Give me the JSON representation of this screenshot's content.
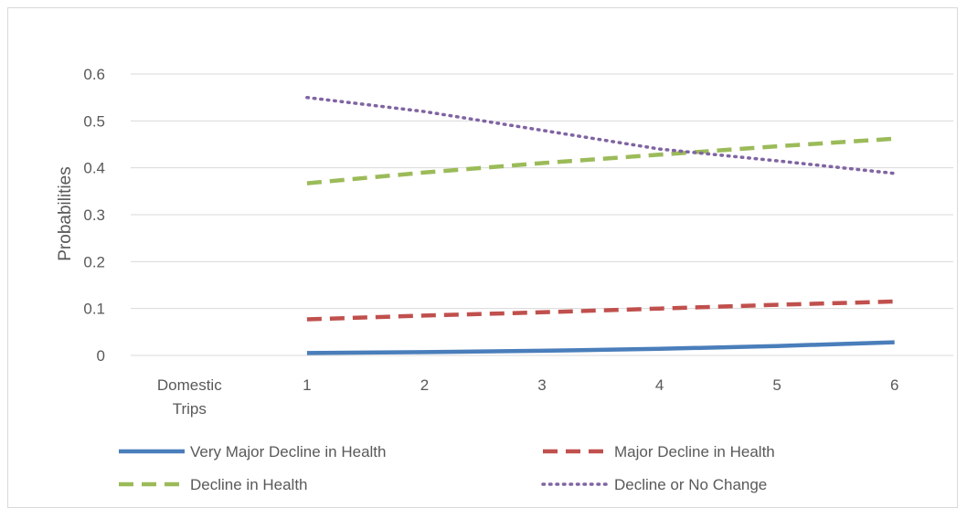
{
  "chart_data": {
    "type": "line",
    "title": "",
    "xlabel": "",
    "ylabel": "Probabilities",
    "categories": [
      "Domestic Trips",
      "1",
      "2",
      "3",
      "4",
      "5",
      "6"
    ],
    "ylim": [
      0,
      0.6
    ],
    "yticks": [
      0,
      0.1,
      0.2,
      0.3,
      0.4,
      0.5,
      0.6
    ],
    "ytick_labels": [
      "0",
      "0.1",
      "0.2",
      "0.3",
      "0.4",
      "0.5",
      "0.6"
    ],
    "grid": true,
    "legend_position": "bottom",
    "series": [
      {
        "name": "Very Major Decline in Health",
        "color": "#4a7ebb",
        "style": "solid",
        "values": [
          null,
          0.005,
          0.007,
          0.01,
          0.014,
          0.02,
          0.028
        ]
      },
      {
        "name": "Major Decline in Health",
        "color": "#c0504d",
        "style": "dashed",
        "values": [
          null,
          0.077,
          0.085,
          0.092,
          0.1,
          0.108,
          0.115
        ]
      },
      {
        "name": "Decline in Health",
        "color": "#9bbb59",
        "style": "dashed",
        "values": [
          null,
          0.367,
          0.39,
          0.41,
          0.428,
          0.446,
          0.462
        ]
      },
      {
        "name": "Decline or No Change",
        "color": "#8064a2",
        "style": "dotted",
        "values": [
          null,
          0.55,
          0.52,
          0.48,
          0.44,
          0.415,
          0.388
        ]
      }
    ]
  }
}
